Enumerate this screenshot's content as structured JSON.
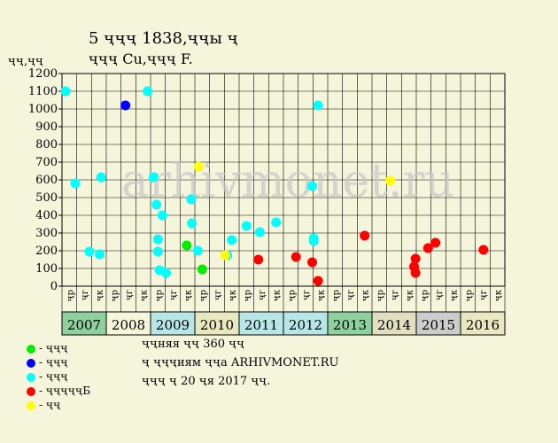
{
  "header": {
    "title_line1": "5 ҷҷҷ 1838,ҷҷы ҷ",
    "title_line2": "ҷҷҷ Cu,ҷҷҷ F.",
    "y_unit": "ҷҷ,ҷҷ"
  },
  "watermark": "arhivmonet.ru",
  "notes": [
    "ҷҷняя ҷҷ 360 ҷҷ",
    "ҷ ҷҷҷиям ҷҷа ARHIVMONET.RU",
    "ҷҷҷ ҷ 20 ҷя 2017 ҷҷ."
  ],
  "legend": [
    {
      "label": "- ҷҷҷ",
      "color": "#00ee00"
    },
    {
      "label": "- ҷҷҷ",
      "color": "#0000ff"
    },
    {
      "label": "- ҷҷҷ",
      "color": "#00ffff"
    },
    {
      "label": "- ҷҷҷҷҷБ",
      "color": "#ff0000"
    },
    {
      "label": "- ҷҷ",
      "color": "#ffff00"
    }
  ],
  "chart_data": {
    "type": "scatter",
    "title": "5 ҷҷҷ 1838,ҷҷы ҷ",
    "subtitle": "ҷҷҷ Cu,ҷҷҷ F.",
    "ylabel": "ҷҷ,ҷҷ",
    "ylim": [
      0,
      1200
    ],
    "yticks": [
      0,
      100,
      200,
      300,
      400,
      500,
      600,
      700,
      800,
      900,
      1000,
      1100,
      1200
    ],
    "grid": true,
    "legend_position": "bottom-left",
    "quarter_labels": [
      "ҷр",
      "ҷг",
      "ҷк"
    ],
    "years": [
      "2007",
      "2008",
      "2009",
      "2010",
      "2011",
      "2012",
      "2013",
      "2014",
      "2015",
      "2016"
    ],
    "year_colors": [
      "#8fd19e",
      "#f5f5dc",
      "#b8e6e6",
      "#e8e8c0",
      "#b8e6e6",
      "#b8e6e6",
      "#8fd19e",
      "#e0e0c0",
      "#cccccc",
      "#e8e8c0"
    ],
    "series": [
      {
        "name": "- ҷҷҷ",
        "color": "#00ee00",
        "points": [
          [
            8.45,
            230
          ],
          [
            9.5,
            95
          ]
        ]
      },
      {
        "name": "- ҷҷҷ",
        "color": "#0000ff",
        "points": [
          [
            4.3,
            1020
          ]
        ]
      },
      {
        "name": "- ҷҷҷ",
        "color": "#00ffff",
        "points": [
          [
            0.25,
            1100
          ],
          [
            0.9,
            580
          ],
          [
            1.85,
            195
          ],
          [
            2.55,
            180
          ],
          [
            2.65,
            615
          ],
          [
            5.8,
            1100
          ],
          [
            6.2,
            615
          ],
          [
            6.4,
            460
          ],
          [
            6.5,
            265
          ],
          [
            6.5,
            195
          ],
          [
            6.6,
            90
          ],
          [
            6.8,
            400
          ],
          [
            7.05,
            75
          ],
          [
            8.75,
            490
          ],
          [
            8.8,
            355
          ],
          [
            9.2,
            200
          ],
          [
            11.2,
            175
          ],
          [
            11.5,
            260
          ],
          [
            12.5,
            340
          ],
          [
            13.4,
            305
          ],
          [
            14.5,
            360
          ],
          [
            16.95,
            565
          ],
          [
            17.05,
            270
          ],
          [
            17.05,
            255
          ],
          [
            17.35,
            1020
          ]
        ]
      },
      {
        "name": "- ҷҷҷҷҷБ",
        "color": "#ff0000",
        "points": [
          [
            13.3,
            150
          ],
          [
            15.85,
            165
          ],
          [
            16.95,
            135
          ],
          [
            17.35,
            30
          ],
          [
            20.5,
            285
          ],
          [
            23.85,
            110
          ],
          [
            23.95,
            155
          ],
          [
            23.95,
            75
          ],
          [
            24.8,
            215
          ],
          [
            25.3,
            245
          ],
          [
            28.55,
            205
          ]
        ]
      },
      {
        "name": "- ҷҷ",
        "color": "#ffff00",
        "points": [
          [
            9.25,
            675
          ],
          [
            11.05,
            175
          ],
          [
            22.25,
            595
          ]
        ]
      }
    ]
  }
}
